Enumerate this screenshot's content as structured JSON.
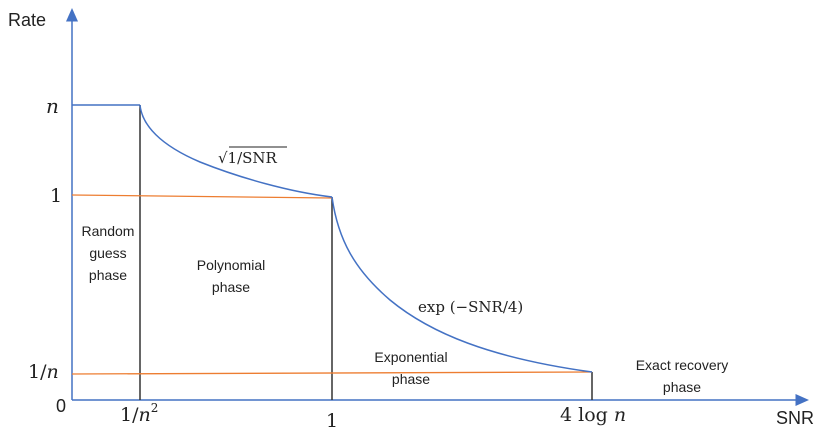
{
  "axes": {
    "y_label": "Rate",
    "x_label": "SNR",
    "origin_label": "0"
  },
  "y_ticks": {
    "n": "n",
    "one": "1",
    "one_over_n_numerator": "1/",
    "one_over_n_var": "n"
  },
  "x_ticks": {
    "inv_n2_prefix": "1/",
    "inv_n2_var": "n",
    "inv_n2_exp": "2",
    "one": "1",
    "four_log_n_coef": "4 log ",
    "four_log_n_var": "n"
  },
  "curve_labels": {
    "sqrt": "√1/SNR",
    "exp": "exp (−SNR/4)"
  },
  "phases": {
    "random": [
      "Random",
      "guess",
      "phase"
    ],
    "polynomial": [
      "Polynomial",
      "phase"
    ],
    "exponential": [
      "Exponential",
      "phase"
    ],
    "exact": [
      "Exact recovery",
      "phase"
    ]
  },
  "colors": {
    "axis": "#4472c4",
    "curve": "#4472c4",
    "orange_line": "#ed7d31",
    "vertical_line": "#333333"
  }
}
